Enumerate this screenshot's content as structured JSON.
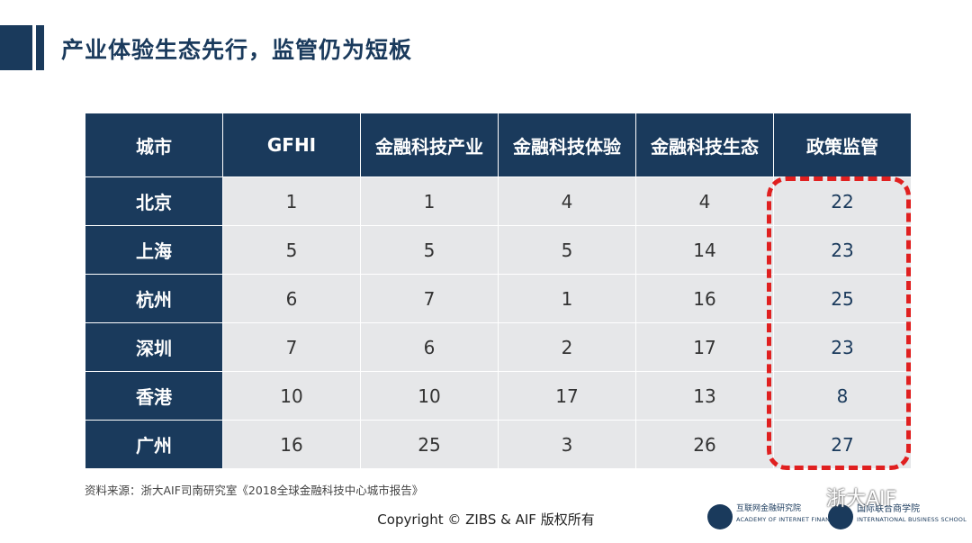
{
  "title": "产业体验生态先行，监管仍为短板",
  "table": {
    "headers": [
      "城市",
      "GFHI",
      "金融科技产业",
      "金融科技体验",
      "金融科技生态",
      "政策监管"
    ],
    "rows": [
      {
        "city": "北京",
        "gfhi": "1",
        "industry": "1",
        "experience": "4",
        "ecosystem": "4",
        "policy": "22"
      },
      {
        "city": "上海",
        "gfhi": "5",
        "industry": "5",
        "experience": "5",
        "ecosystem": "14",
        "policy": "23"
      },
      {
        "city": "杭州",
        "gfhi": "6",
        "industry": "7",
        "experience": "1",
        "ecosystem": "16",
        "policy": "25"
      },
      {
        "city": "深圳",
        "gfhi": "7",
        "industry": "6",
        "experience": "2",
        "ecosystem": "17",
        "policy": "23"
      },
      {
        "city": "香港",
        "gfhi": "10",
        "industry": "10",
        "experience": "17",
        "ecosystem": "13",
        "policy": "8"
      },
      {
        "city": "广州",
        "gfhi": "16",
        "industry": "25",
        "experience": "3",
        "ecosystem": "26",
        "policy": "27"
      }
    ]
  },
  "source": "资料来源：浙大AIF司南研究室《2018全球金融科技中心城市报告》",
  "copyright": "Copyright © ZIBS & AIF 版权所有",
  "logos": {
    "aif_name": "互联网金融研究院",
    "aif_en": "ACADEMY OF INTERNET FINANCE",
    "zibs_name": "国际联合商学院",
    "zibs_en": "INTERNATIONAL BUSINESS SCHOOL"
  },
  "watermark": "浙大AIF",
  "colors": {
    "primary": "#1a3a5c",
    "highlight": "#e02020",
    "cell": "#e6e7e9"
  }
}
